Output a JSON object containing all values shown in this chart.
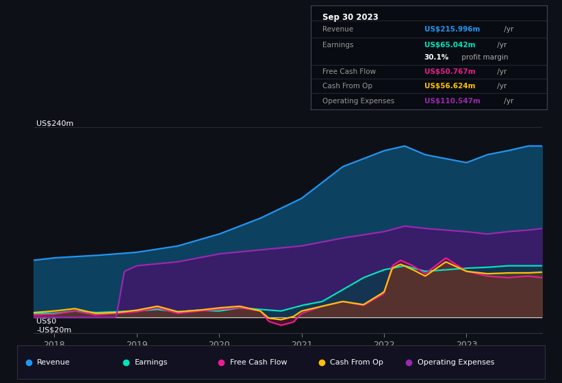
{
  "bg_color": "#0d1117",
  "ylabel_top": "US$240m",
  "ylabel_zero": "US$0",
  "ylabel_neg": "-US$20m",
  "ylim": [
    -20,
    260
  ],
  "xticks": [
    2018,
    2019,
    2020,
    2021,
    2022,
    2023
  ],
  "info_box": {
    "date": "Sep 30 2023",
    "rows": [
      {
        "label": "Revenue",
        "value": "US$215.996m",
        "suffix": " /yr",
        "value_color": "#2196f3"
      },
      {
        "label": "Earnings",
        "value": "US$65.042m",
        "suffix": " /yr",
        "value_color": "#00e5c0"
      },
      {
        "label": "",
        "value": "30.1%",
        "suffix": " profit margin",
        "value_color": "#ffffff"
      },
      {
        "label": "Free Cash Flow",
        "value": "US$50.767m",
        "suffix": " /yr",
        "value_color": "#e91e8c"
      },
      {
        "label": "Cash From Op",
        "value": "US$56.624m",
        "suffix": " /yr",
        "value_color": "#ffc107"
      },
      {
        "label": "Operating Expenses",
        "value": "US$110.547m",
        "suffix": " /yr",
        "value_color": "#9c27b0"
      }
    ]
  },
  "legend": [
    {
      "label": "Revenue",
      "color": "#2196f3"
    },
    {
      "label": "Earnings",
      "color": "#00e5c0"
    },
    {
      "label": "Free Cash Flow",
      "color": "#e91e8c"
    },
    {
      "label": "Cash From Op",
      "color": "#ffc107"
    },
    {
      "label": "Operating Expenses",
      "color": "#9c27b0"
    }
  ],
  "series_colors": {
    "revenue": "#2196f3",
    "earnings": "#00e5c0",
    "fcf": "#e91e8c",
    "cashfromop": "#ffc107",
    "opex": "#9c27b0"
  },
  "fill_colors": {
    "revenue": "#0d4a6e",
    "earnings": "#0a3d4a",
    "fcf": "#6b1040",
    "cashfromop": "#6b4a10",
    "opex": "#3d1a6b"
  }
}
